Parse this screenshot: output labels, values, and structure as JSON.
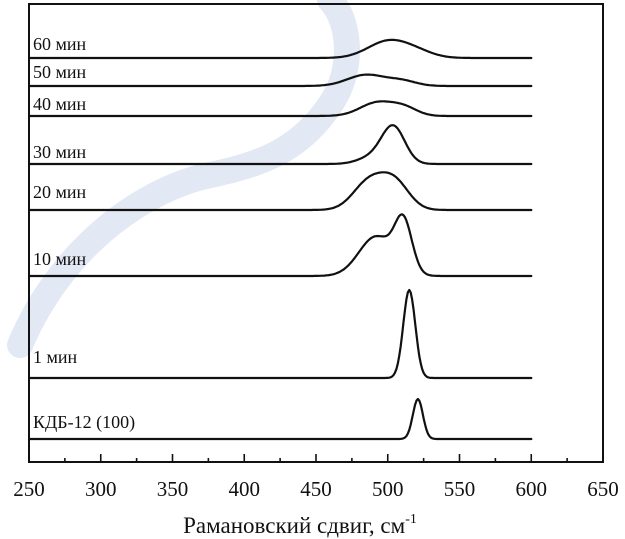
{
  "chart_data": {
    "type": "line",
    "title": "",
    "xlabel": "Рамановский сдвиг, см",
    "xlabel_superscript": "-1",
    "ylabel": "",
    "xlim": [
      250,
      650
    ],
    "x_ticks": [
      250,
      300,
      350,
      400,
      450,
      500,
      550,
      600,
      650
    ],
    "grid": false,
    "legend": "none",
    "stacked_offsets": true,
    "series": [
      {
        "name": "60 мин",
        "peaks": [
          {
            "center": 500,
            "height": 0.75,
            "width": 14
          },
          {
            "center": 520,
            "height": 0.25,
            "width": 12
          }
        ]
      },
      {
        "name": "50 мин",
        "peaks": [
          {
            "center": 485,
            "height": 0.8,
            "width": 13
          },
          {
            "center": 510,
            "height": 0.35,
            "width": 10
          }
        ]
      },
      {
        "name": "40 мин",
        "peaks": [
          {
            "center": 493,
            "height": 0.85,
            "width": 12
          },
          {
            "center": 512,
            "height": 0.45,
            "width": 9
          }
        ]
      },
      {
        "name": "30 мин",
        "peaks": [
          {
            "center": 504,
            "height": 1.0,
            "width": 8
          },
          {
            "center": 490,
            "height": 0.2,
            "width": 10
          }
        ]
      },
      {
        "name": "20 мин",
        "peaks": [
          {
            "center": 487,
            "height": 0.85,
            "width": 11
          },
          {
            "center": 505,
            "height": 0.8,
            "width": 10
          }
        ]
      },
      {
        "name": "10 мин",
        "peaks": [
          {
            "center": 492,
            "height": 0.72,
            "width": 12
          },
          {
            "center": 511,
            "height": 0.9,
            "width": 6
          }
        ]
      },
      {
        "name": "1 мин",
        "peaks": [
          {
            "center": 515,
            "height": 1.0,
            "width": 4.2
          }
        ]
      },
      {
        "name": "КДБ-12 (100)",
        "peaks": [
          {
            "center": 521,
            "height": 1.0,
            "width": 3.5
          }
        ]
      }
    ]
  },
  "watermark": {
    "color": "#1f4fa8"
  }
}
